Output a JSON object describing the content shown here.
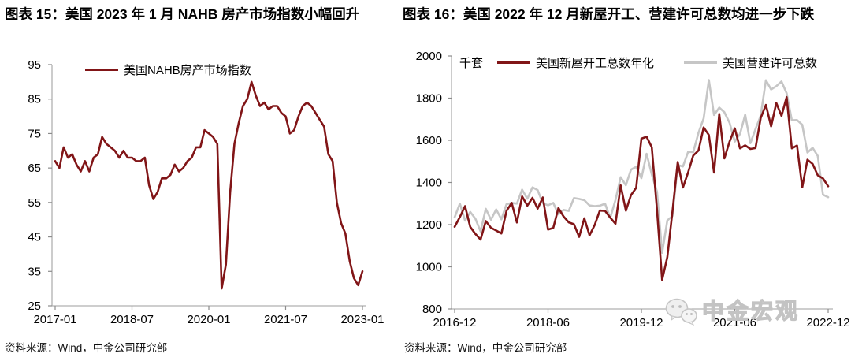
{
  "watermark": {
    "icon": "wechat-icon",
    "text": "中金宏观"
  },
  "chart_data": [
    {
      "type": "line",
      "title": "图表 15：美国 2023 年 1 月 NAHB 房产市场指数小幅回升",
      "source": "资料来源：Wind，中金公司研究部",
      "unit_label": "",
      "ylim": [
        25,
        95
      ],
      "yticks": [
        95,
        85,
        75,
        65,
        55,
        45,
        35,
        25
      ],
      "months": 72,
      "xticks": [
        {
          "label": "2017-01",
          "month": 0
        },
        {
          "label": "2018-07",
          "month": 18
        },
        {
          "label": "2020-01",
          "month": 36
        },
        {
          "label": "2021-07",
          "month": 54
        },
        {
          "label": "2023-01",
          "month": 72
        }
      ],
      "grid": false,
      "legend_position": "top",
      "series": [
        {
          "name": "美国NAHB房产市场指数",
          "color": "#811517",
          "values": [
            67,
            65,
            71,
            68,
            69,
            66,
            64,
            67,
            64,
            68,
            69,
            74,
            72,
            71,
            70,
            68,
            70,
            68,
            68,
            67,
            67,
            68,
            60,
            56,
            58,
            62,
            62,
            63,
            66,
            64,
            65,
            67,
            68,
            71,
            71,
            76,
            75,
            74,
            72,
            30,
            37,
            58,
            72,
            78,
            83,
            85,
            90,
            86,
            83,
            84,
            82,
            83,
            83,
            81,
            80,
            75,
            76,
            80,
            83,
            84,
            83,
            81,
            79,
            77,
            69,
            67,
            55,
            49,
            46,
            38,
            33,
            31,
            35
          ]
        }
      ]
    },
    {
      "type": "line",
      "title": "图表 16：美国 2022 年 12 月新屋开工、营建许可总数均进一步下跌",
      "source": "资料来源：Wind，中金公司研究部",
      "unit_label": "千套",
      "ylim": [
        800,
        2000
      ],
      "yticks": [
        2000,
        1800,
        1600,
        1400,
        1200,
        1000,
        800
      ],
      "months": 72,
      "xticks": [
        {
          "label": "2016-12",
          "month": 0
        },
        {
          "label": "2018-06",
          "month": 18
        },
        {
          "label": "2019-12",
          "month": 36
        },
        {
          "label": "2021-06",
          "month": 54
        },
        {
          "label": "2022-12",
          "month": 72
        }
      ],
      "grid": false,
      "legend_position": "top",
      "series": [
        {
          "name": "美国新屋开工总数年化",
          "color": "#811517",
          "values": [
            1190,
            1236,
            1288,
            1189,
            1156,
            1129,
            1217,
            1185,
            1172,
            1158,
            1265,
            1303,
            1210,
            1334,
            1290,
            1327,
            1276,
            1329,
            1177,
            1184,
            1279,
            1238,
            1211,
            1202,
            1142,
            1230,
            1149,
            1199,
            1267,
            1265,
            1233,
            1204,
            1386,
            1266,
            1340,
            1375,
            1608,
            1617,
            1567,
            1269,
            938,
            1046,
            1265,
            1497,
            1376,
            1448,
            1528,
            1551,
            1661,
            1625,
            1447,
            1725,
            1514,
            1594,
            1657,
            1562,
            1576,
            1559,
            1563,
            1706,
            1768,
            1666,
            1777,
            1716,
            1805,
            1562,
            1575,
            1377,
            1508,
            1488,
            1434,
            1419,
            1382
          ]
        },
        {
          "name": "美国营建许可总数",
          "color": "#C6C6C6",
          "values": [
            1235,
            1300,
            1219,
            1260,
            1228,
            1168,
            1275,
            1223,
            1272,
            1225,
            1297,
            1303,
            1300,
            1366,
            1323,
            1377,
            1364,
            1301,
            1292,
            1303,
            1249,
            1270,
            1265,
            1326,
            1322,
            1316,
            1291,
            1288,
            1290,
            1299,
            1232,
            1317,
            1425,
            1387,
            1461,
            1474,
            1420,
            1536,
            1438,
            1356,
            1066,
            1220,
            1241,
            1483,
            1476,
            1545,
            1544,
            1635,
            1704,
            1886,
            1720,
            1755,
            1733,
            1683,
            1594,
            1630,
            1721,
            1586,
            1653,
            1717,
            1885,
            1841,
            1857,
            1879,
            1823,
            1695,
            1696,
            1674,
            1542,
            1564,
            1526,
            1342,
            1330
          ]
        }
      ]
    }
  ]
}
